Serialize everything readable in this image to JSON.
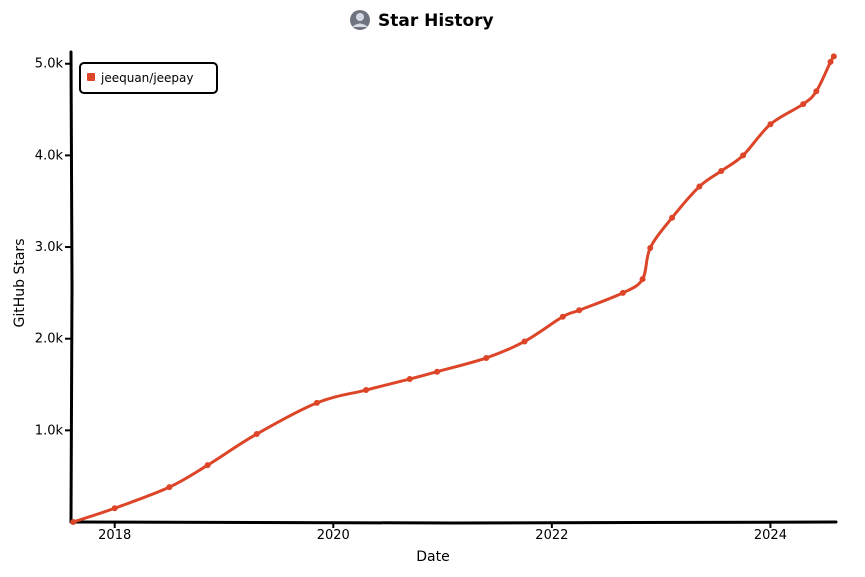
{
  "chart_data": {
    "type": "line",
    "title": "Star History",
    "xlabel": "Date",
    "ylabel": "GitHub Stars",
    "x_tick_labels": [
      "2018",
      "2020",
      "2022",
      "2024"
    ],
    "y_tick_labels": [
      "1.0k",
      "2.0k",
      "3.0k",
      "4.0k",
      "5.0k"
    ],
    "x_ticks": [
      2018,
      2020,
      2022,
      2024
    ],
    "y_ticks": [
      1000,
      2000,
      3000,
      4000,
      5000
    ],
    "xlim": [
      2017.6,
      2024.6
    ],
    "ylim": [
      0,
      5150
    ],
    "grid": false,
    "legend_position": "top-left",
    "series": [
      {
        "name": "jeequan/jeepay",
        "color": "#dd4528",
        "points": [
          {
            "x": 2017.62,
            "y": 0
          },
          {
            "x": 2018.0,
            "y": 150
          },
          {
            "x": 2018.5,
            "y": 380
          },
          {
            "x": 2018.85,
            "y": 620
          },
          {
            "x": 2019.3,
            "y": 960
          },
          {
            "x": 2019.85,
            "y": 1300
          },
          {
            "x": 2020.3,
            "y": 1440
          },
          {
            "x": 2020.7,
            "y": 1560
          },
          {
            "x": 2020.95,
            "y": 1640
          },
          {
            "x": 2021.4,
            "y": 1790
          },
          {
            "x": 2021.75,
            "y": 1970
          },
          {
            "x": 2022.1,
            "y": 2240
          },
          {
            "x": 2022.25,
            "y": 2310
          },
          {
            "x": 2022.65,
            "y": 2500
          },
          {
            "x": 2022.83,
            "y": 2650
          },
          {
            "x": 2022.9,
            "y": 2990
          },
          {
            "x": 2023.1,
            "y": 3320
          },
          {
            "x": 2023.35,
            "y": 3660
          },
          {
            "x": 2023.55,
            "y": 3830
          },
          {
            "x": 2023.75,
            "y": 4000
          },
          {
            "x": 2024.0,
            "y": 4340
          },
          {
            "x": 2024.3,
            "y": 4560
          },
          {
            "x": 2024.42,
            "y": 4700
          },
          {
            "x": 2024.55,
            "y": 5020
          },
          {
            "x": 2024.58,
            "y": 5080
          }
        ]
      }
    ]
  }
}
